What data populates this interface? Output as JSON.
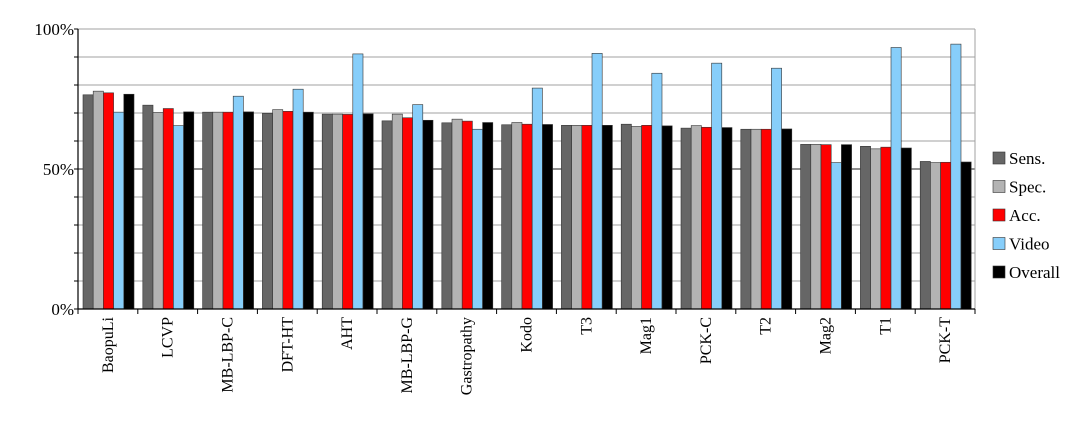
{
  "chart_data": {
    "type": "bar",
    "title": "",
    "xlabel": "",
    "ylabel": "",
    "ylim": [
      0,
      100
    ],
    "yticks": [
      "0%",
      "50%",
      "100%"
    ],
    "grid": true,
    "legend_position": "right",
    "categories": [
      "BaopuLi",
      "LCVP",
      "MB-LBP-C",
      "DFT-HT",
      "AHT",
      "MB-LBP-G",
      "Gastropathy",
      "Kodo",
      "T3",
      "Mag1",
      "PCK-C",
      "T2",
      "Mag2",
      "T1",
      "PCK-T"
    ],
    "series": [
      {
        "name": "Sens.",
        "color": "#666666",
        "values": [
          76.5,
          72.8,
          70.3,
          69.9,
          69.6,
          67.2,
          66.5,
          65.8,
          65.6,
          66.0,
          64.6,
          64.2,
          58.8,
          58.1,
          52.7
        ]
      },
      {
        "name": "Spec.",
        "color": "#b3b3b3",
        "values": [
          77.8,
          70.2,
          70.3,
          71.2,
          69.6,
          69.6,
          67.8,
          66.6,
          65.6,
          65.2,
          65.5,
          64.2,
          58.8,
          57.2,
          52.3
        ]
      },
      {
        "name": "Acc.",
        "color": "#ff0000",
        "values": [
          77.2,
          71.6,
          70.3,
          70.6,
          69.5,
          68.3,
          67.1,
          66.0,
          65.6,
          65.6,
          64.9,
          64.2,
          58.7,
          57.8,
          52.4
        ]
      },
      {
        "name": "Video",
        "color": "#87cefa",
        "values": [
          70.3,
          65.5,
          76.0,
          78.5,
          91.1,
          73.0,
          64.2,
          78.9,
          91.3,
          84.2,
          87.8,
          86.0,
          52.3,
          93.4,
          94.6
        ]
      },
      {
        "name": "Overall",
        "color": "#000000",
        "values": [
          76.7,
          70.4,
          70.4,
          70.3,
          69.7,
          67.4,
          66.6,
          65.9,
          65.6,
          65.4,
          64.8,
          64.3,
          58.7,
          57.5,
          52.5
        ]
      }
    ]
  }
}
